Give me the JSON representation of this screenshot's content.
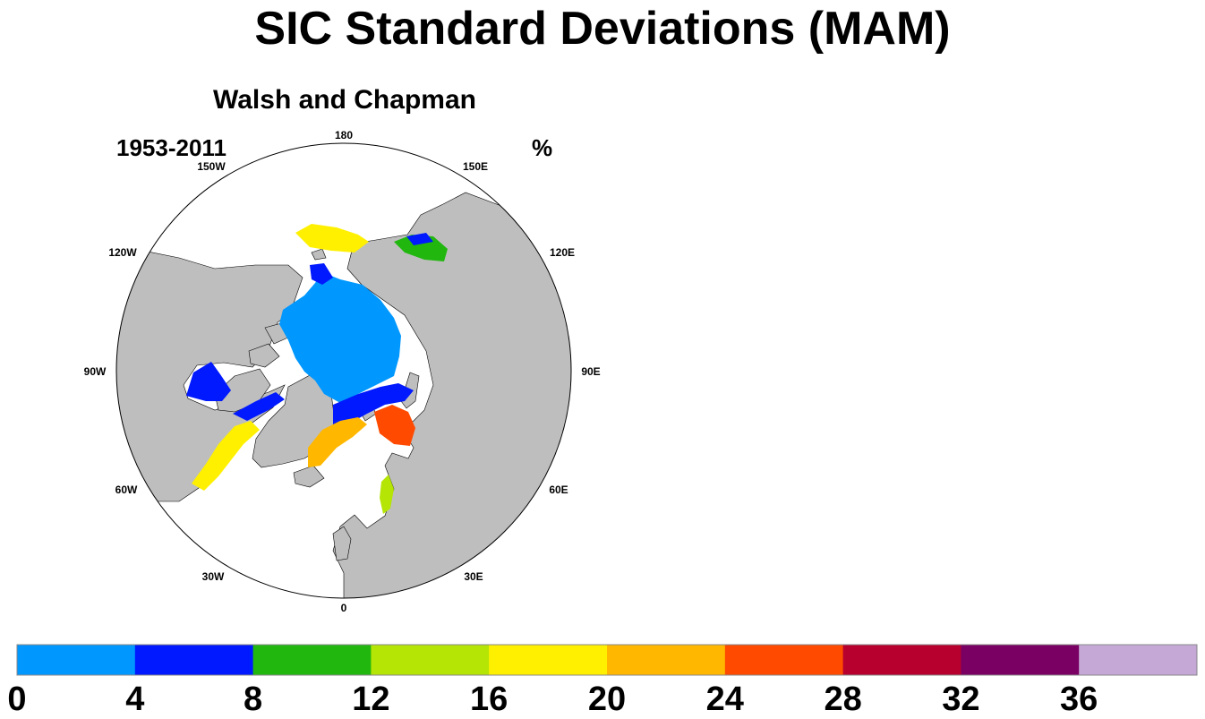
{
  "title": "SIC Standard Deviations (MAM)",
  "panel": {
    "dataset": "Walsh and Chapman",
    "period": "1953-2011",
    "units": "%"
  },
  "map": {
    "projection": "north-polar-stereographic",
    "land_color": "#bebebe",
    "ocean_color": "#ffffff",
    "longitude_labels": [
      "180",
      "150E",
      "120E",
      "90E",
      "60E",
      "30E",
      "0",
      "30W",
      "60W",
      "90W",
      "120W",
      "150W"
    ]
  },
  "colorbar": {
    "colors": [
      "#0098ff",
      "#0019ff",
      "#21b70f",
      "#b5e505",
      "#fff000",
      "#ffb700",
      "#ff4a00",
      "#b8002e",
      "#7a0063",
      "#c5a8d6"
    ],
    "labels": [
      "0",
      "4",
      "8",
      "12",
      "16",
      "20",
      "24",
      "28",
      "32",
      "36"
    ]
  },
  "regions": [
    {
      "name": "central-arctic",
      "level": 0
    },
    {
      "name": "arctic-ice-edge",
      "level": 4
    },
    {
      "name": "hudson-bay",
      "level": 4
    },
    {
      "name": "barents-sea",
      "level": 24
    },
    {
      "name": "greenland-sea",
      "level": 20
    },
    {
      "name": "labrador-sea",
      "level": 16
    },
    {
      "name": "baltic-sea",
      "level": 12
    },
    {
      "name": "bering-sea",
      "level": 16
    },
    {
      "name": "sea-of-okhotsk",
      "level": 8
    }
  ]
}
